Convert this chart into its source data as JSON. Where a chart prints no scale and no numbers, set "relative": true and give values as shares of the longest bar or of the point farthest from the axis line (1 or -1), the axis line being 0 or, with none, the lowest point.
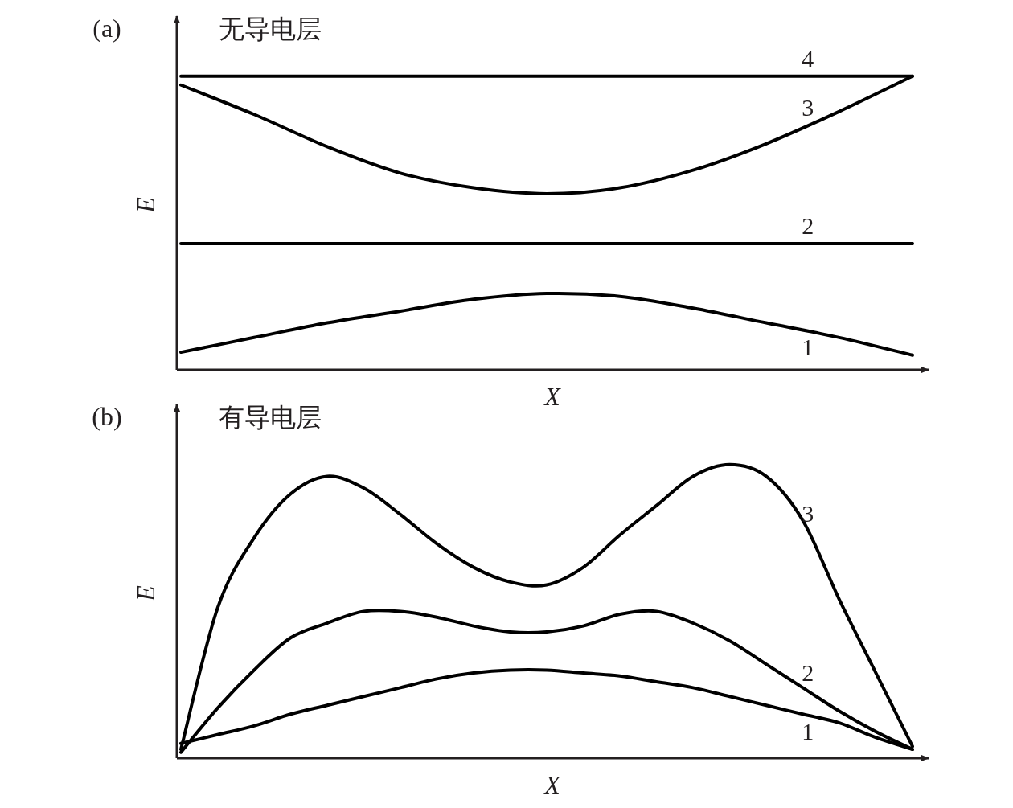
{
  "chart_data": [
    {
      "type": "line",
      "title": "无导电层",
      "xlabel": "X",
      "ylabel": "E",
      "relative": true,
      "annotations": [
        "(a)"
      ],
      "categories": [
        null,
        null,
        null,
        null,
        null,
        null,
        null,
        null,
        null,
        null,
        null
      ],
      "series": [
        {
          "name": "1",
          "color": "#000000",
          "values": [
            0.06,
            0.11,
            0.16,
            0.2,
            0.24,
            0.26,
            0.25,
            0.21,
            0.16,
            0.11,
            0.05
          ]
        },
        {
          "name": "2",
          "color": "#000000",
          "values": [
            0.43,
            0.43,
            0.43,
            0.43,
            0.43,
            0.43,
            0.43,
            0.43,
            0.43,
            0.43,
            0.43
          ]
        },
        {
          "name": "3",
          "color": "#000000",
          "values": [
            0.97,
            0.87,
            0.76,
            0.67,
            0.62,
            0.6,
            0.62,
            0.68,
            0.77,
            0.88,
            1.0
          ]
        },
        {
          "name": "4",
          "color": "#000000",
          "values": [
            1,
            1,
            1,
            1,
            1,
            1,
            1,
            1,
            1,
            1,
            1
          ]
        }
      ]
    },
    {
      "type": "line",
      "title": "有导电层",
      "xlabel": "X",
      "ylabel": "E",
      "relative": true,
      "annotations": [
        "(b)"
      ],
      "categories": [
        null,
        null,
        null,
        null,
        null,
        null,
        null,
        null,
        null,
        null,
        null,
        null,
        null,
        null,
        null,
        null,
        null,
        null,
        null,
        null,
        null
      ],
      "series": [
        {
          "name": "1",
          "color": "#000000",
          "values": [
            0.05,
            0.08,
            0.11,
            0.15,
            0.18,
            0.21,
            0.24,
            0.27,
            0.29,
            0.3,
            0.3,
            0.29,
            0.28,
            0.26,
            0.24,
            0.21,
            0.18,
            0.15,
            0.12,
            0.07,
            0.03
          ]
        },
        {
          "name": "2",
          "color": "#000000",
          "values": [
            0.02,
            0.17,
            0.3,
            0.41,
            0.46,
            0.5,
            0.5,
            0.48,
            0.45,
            0.43,
            0.43,
            0.45,
            0.49,
            0.5,
            0.46,
            0.4,
            0.32,
            0.24,
            0.16,
            0.09,
            0.03
          ]
        },
        {
          "name": "3",
          "color": "#000000",
          "values": [
            0.03,
            0.51,
            0.75,
            0.9,
            0.96,
            0.92,
            0.83,
            0.73,
            0.65,
            0.6,
            0.59,
            0.65,
            0.76,
            0.86,
            0.96,
            1.0,
            0.96,
            0.81,
            0.54,
            0.29,
            0.04
          ]
        }
      ]
    }
  ]
}
